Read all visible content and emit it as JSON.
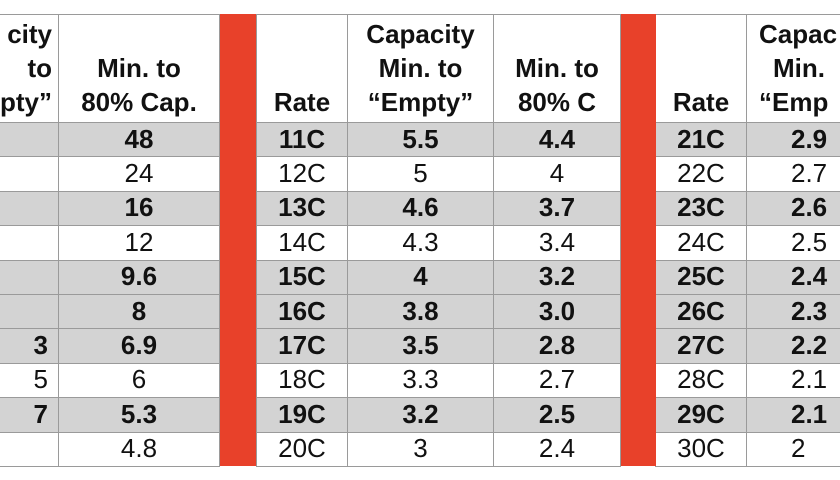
{
  "colors": {
    "separator": "#e8412a",
    "shade": "#d3d3d3",
    "grid": "#9a9a9a"
  },
  "headers": {
    "g1_capacity": "city",
    "g1_capacity_l2": "to",
    "g1_capacity_l3": "pty”",
    "g1_min80_l2": "Min. to",
    "g1_min80_l3": "80% Cap.",
    "g2_rate": "Rate",
    "g2_capacity_l1": "Capacity",
    "g2_capacity_l2": "Min. to",
    "g2_capacity_l3": "“Empty”",
    "g2_min80_l2": "Min. to",
    "g2_min80_l3": "80% C",
    "g3_rate": "Rate",
    "g3_capacity_l1": "Capac",
    "g3_capacity_l2": "Min.",
    "g3_capacity_l3": "“Emp"
  },
  "rows": [
    {
      "c0": "",
      "c1": "48",
      "c2": "11C",
      "c3": "5.5",
      "c4": "4.4",
      "c5": "21C",
      "c6": "2.9"
    },
    {
      "c0": "",
      "c1": "24",
      "c2": "12C",
      "c3": "5",
      "c4": "4",
      "c5": "22C",
      "c6": "2.7"
    },
    {
      "c0": "",
      "c1": "16",
      "c2": "13C",
      "c3": "4.6",
      "c4": "3.7",
      "c5": "23C",
      "c6": "2.6"
    },
    {
      "c0": "",
      "c1": "12",
      "c2": "14C",
      "c3": "4.3",
      "c4": "3.4",
      "c5": "24C",
      "c6": "2.5"
    },
    {
      "c0": "",
      "c1": "9.6",
      "c2": "15C",
      "c3": "4",
      "c4": "3.2",
      "c5": "25C",
      "c6": "2.4"
    },
    {
      "c0": "",
      "c1": "8",
      "c2": "16C",
      "c3": "3.8",
      "c4": "3.0",
      "c5": "26C",
      "c6": "2.3"
    },
    {
      "c0": "3",
      "c1": "6.9",
      "c2": "17C",
      "c3": "3.5",
      "c4": "2.8",
      "c5": "27C",
      "c6": "2.2"
    },
    {
      "c0": "5",
      "c1": "6",
      "c2": "18C",
      "c3": "3.3",
      "c4": "2.7",
      "c5": "28C",
      "c6": "2.1"
    },
    {
      "c0": "7",
      "c1": "5.3",
      "c2": "19C",
      "c3": "3.2",
      "c4": "2.5",
      "c5": "29C",
      "c6": "2.1"
    },
    {
      "c0": "",
      "c1": "4.8",
      "c2": "20C",
      "c3": "3",
      "c4": "2.4",
      "c5": "30C",
      "c6": "2"
    }
  ]
}
